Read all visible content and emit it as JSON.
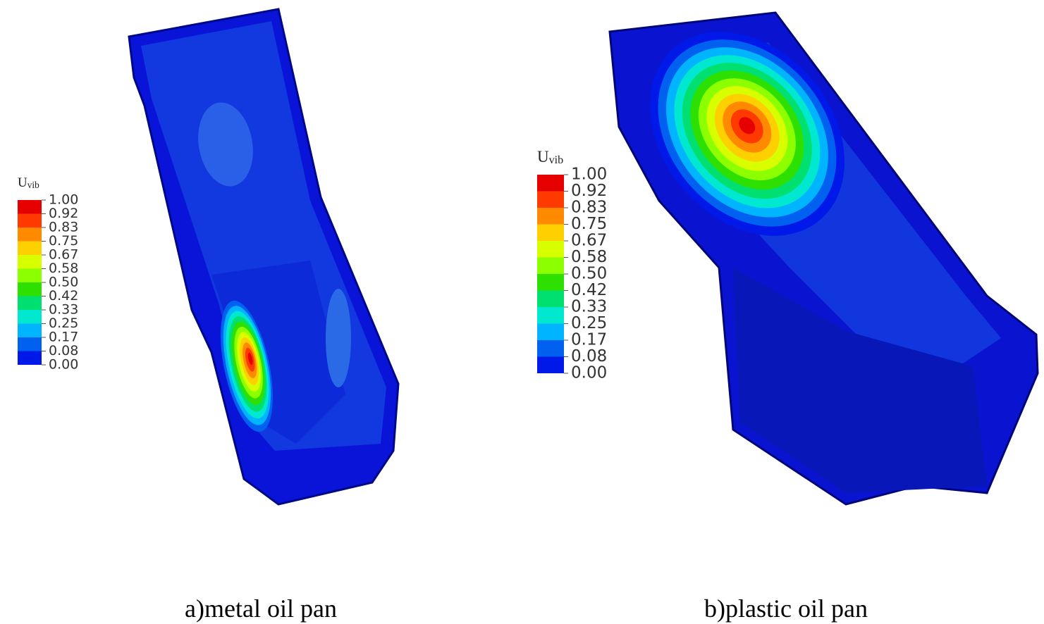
{
  "panels": [
    {
      "legend": {
        "title": {
          "symbol": "U",
          "subscript": "vib"
        },
        "labels": [
          "1.00",
          "0.92",
          "0.83",
          "0.75",
          "0.67",
          "0.58",
          "0.50",
          "0.42",
          "0.33",
          "0.25",
          "0.17",
          "0.08",
          "0.00"
        ]
      },
      "caption": "a)metal oil pan"
    },
    {
      "legend": {
        "title": {
          "symbol": "U",
          "subscript": "vib"
        },
        "labels": [
          "1.00",
          "0.92",
          "0.83",
          "0.75",
          "0.67",
          "0.58",
          "0.50",
          "0.42",
          "0.33",
          "0.25",
          "0.17",
          "0.08",
          "0.00"
        ]
      },
      "caption": "b)plastic oil pan"
    }
  ]
}
